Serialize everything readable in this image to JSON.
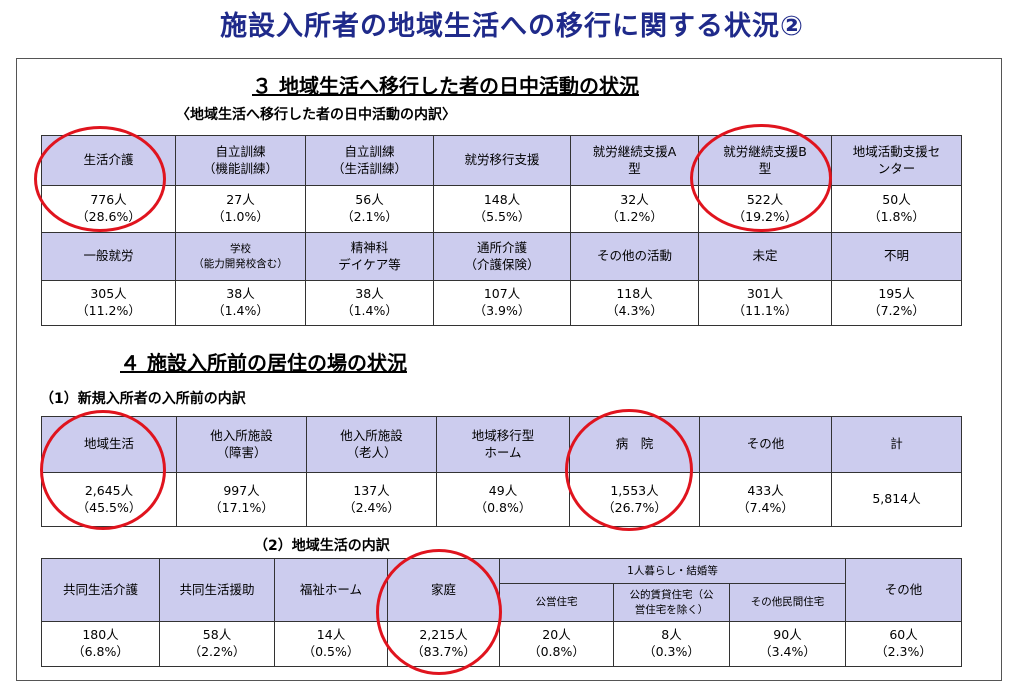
{
  "title": "施設入所者の地域生活への移行に関する状況②",
  "section3": {
    "title": "３ 地域生活へ移行した者の日中活動の状況",
    "subtitle": "〈地域生活へ移行した者の日中活動の内訳〉",
    "row1_headers": [
      "生活介護",
      "自立訓練\n（機能訓練）",
      "自立訓練\n（生活訓練）",
      "就労移行支援",
      "就労継続支援A\n型",
      "就労継続支援B\n型",
      "地域活動支援セ\nンター"
    ],
    "row1_values": [
      "776人\n（28.6%）",
      "27人\n（1.0%）",
      "56人\n（2.1%）",
      "148人\n（5.5%）",
      "32人\n（1.2%）",
      "522人\n（19.2%）",
      "50人\n（1.8%）"
    ],
    "row2_headers": [
      "一般就労",
      "学校\n（能力開発校含む）",
      "精神科\nデイケア等",
      "通所介護\n（介護保険）",
      "その他の活動",
      "未定",
      "不明"
    ],
    "row2_values": [
      "305人\n（11.2%）",
      "38人\n（1.4%）",
      "38人\n（1.4%）",
      "107人\n（3.9%）",
      "118人\n（4.3%）",
      "301人\n（11.1%）",
      "195人\n（7.2%）"
    ]
  },
  "section4": {
    "title": "４ 施設入所前の居住の場の状況",
    "sub1": "（1）新規入所者の入所前の内訳",
    "t1_headers": [
      "地域生活",
      "他入所施設\n（障害）",
      "他入所施設\n（老人）",
      "地域移行型\nホーム",
      "病　院",
      "その他",
      "計"
    ],
    "t1_values": [
      "2,645人\n（45.5%）",
      "997人\n（17.1%）",
      "137人\n（2.4%）",
      "49人\n（0.8%）",
      "1,553人\n（26.7%）",
      "433人\n（7.4%）",
      "5,814人"
    ],
    "sub2": "（2）地域生活の内訳",
    "t2_headers": [
      "共同生活介護",
      "共同生活援助",
      "福祉ホーム",
      "家庭",
      "1人暮らし・結婚等",
      "その他"
    ],
    "t2_subheaders": [
      "公営住宅",
      "公的賃貸住宅（公\n営住宅を除く）",
      "その他民間住宅"
    ],
    "t2_values": [
      "180人\n（6.8%）",
      "58人\n（2.2%）",
      "14人\n（0.5%）",
      "2,215人\n（83.7%）",
      "20人\n（0.8%）",
      "8人\n（0.3%）",
      "90人\n（3.4%）",
      "60人\n（2.3%）"
    ]
  }
}
